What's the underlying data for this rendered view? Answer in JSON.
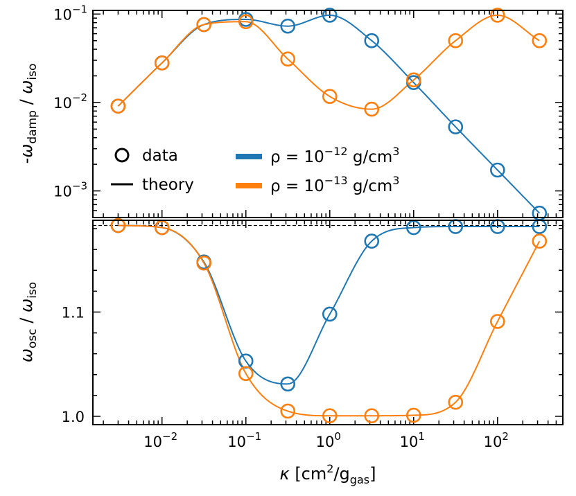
{
  "chart_data": [
    {
      "type": "line",
      "panel": "top",
      "ylabel": "-ω_damp / ω_iso",
      "xlabel": "",
      "x_scale": "log",
      "y_scale": "log",
      "xlim": [
        0.0015,
        600
      ],
      "ylim": [
        0.0005,
        0.11
      ],
      "x_tick_labels": [
        "10^-2",
        "10^-1",
        "10^0",
        "10^1",
        "10^2"
      ],
      "y_tick_labels": [
        "10^-3",
        "10^-2",
        "10^-1"
      ],
      "series": [
        {
          "name": "ρ = 10^-12 g/cm³",
          "color": "#1f77b4",
          "x": [
            0.003,
            0.01,
            0.0316,
            0.1,
            0.316,
            1,
            3.16,
            10,
            31.6,
            100,
            316
          ],
          "y": [
            0.0091,
            0.028,
            0.076,
            0.087,
            0.073,
            0.097,
            0.05,
            0.0168,
            0.0053,
            0.00172,
            0.00056
          ]
        },
        {
          "name": "ρ = 10^-13 g/cm³",
          "color": "#ff7f0e",
          "x": [
            0.003,
            0.01,
            0.0316,
            0.1,
            0.316,
            1,
            3.16,
            10,
            31.6,
            100,
            316
          ],
          "y": [
            0.0091,
            0.028,
            0.076,
            0.082,
            0.031,
            0.0117,
            0.0084,
            0.018,
            0.05,
            0.097,
            0.05
          ]
        }
      ],
      "legend": {
        "placement": "lower-left",
        "marker_entries": [
          {
            "label": "data",
            "style": "open-circle"
          },
          {
            "label": "theory",
            "style": "line"
          }
        ],
        "color_entries": [
          {
            "label_base": "ρ = 10",
            "exponent": "−12",
            "unit": " g/cm",
            "unit_exp": "3",
            "color": "#1f77b4"
          },
          {
            "label_base": "ρ = 10",
            "exponent": "−13",
            "unit": " g/cm",
            "unit_exp": "3",
            "color": "#ff7f0e"
          }
        ]
      }
    },
    {
      "type": "line",
      "panel": "bottom",
      "ylabel": "ω_osc / ω_iso",
      "xlabel": "κ [cm²/g_gas]",
      "x_scale": "log",
      "y_scale": "linear",
      "xlim": [
        0.0015,
        600
      ],
      "ylim": [
        0.992,
        1.188
      ],
      "y_ticks": [
        1.0,
        1.1
      ],
      "y_tick_labels": [
        "1.0",
        "1.1"
      ],
      "reference_line": {
        "y": 1.183,
        "style": "dashed"
      },
      "series": [
        {
          "name": "ρ = 10^-12 g/cm³",
          "color": "#1f77b4",
          "x": [
            0.003,
            0.01,
            0.0316,
            0.1,
            0.316,
            1,
            3.16,
            10,
            31.6,
            100,
            316
          ],
          "y": [
            1.183,
            1.181,
            1.148,
            1.053,
            1.031,
            1.098,
            1.168,
            1.181,
            1.182,
            1.182,
            1.182
          ]
        },
        {
          "name": "ρ = 10^-13 g/cm³",
          "color": "#ff7f0e",
          "x": [
            0.003,
            0.01,
            0.0316,
            0.1,
            0.316,
            1,
            3.16,
            10,
            31.6,
            100,
            316
          ],
          "y": [
            1.183,
            1.181,
            1.147,
            1.041,
            1.005,
            1.0005,
            1.0005,
            1.001,
            1.0135,
            1.091,
            1.168
          ]
        }
      ]
    }
  ],
  "labels": {
    "top_ylabel_prefix": "-",
    "top_ylabel_sym": "ω",
    "top_ylabel_sub": "damp",
    "top_ylabel_sep": " / ",
    "top_ylabel_sym2": "ω",
    "top_ylabel_sub2": "iso",
    "bottom_ylabel_sym": "ω",
    "bottom_ylabel_sub": "osc",
    "bottom_ylabel_sep": " / ",
    "bottom_ylabel_sym2": "ω",
    "bottom_ylabel_sub2": "iso",
    "xlabel_sym": "κ",
    "xlabel_open": " [cm",
    "xlabel_sup": "2",
    "xlabel_mid": "/g",
    "xlabel_sub": "gas",
    "xlabel_close": "]"
  }
}
